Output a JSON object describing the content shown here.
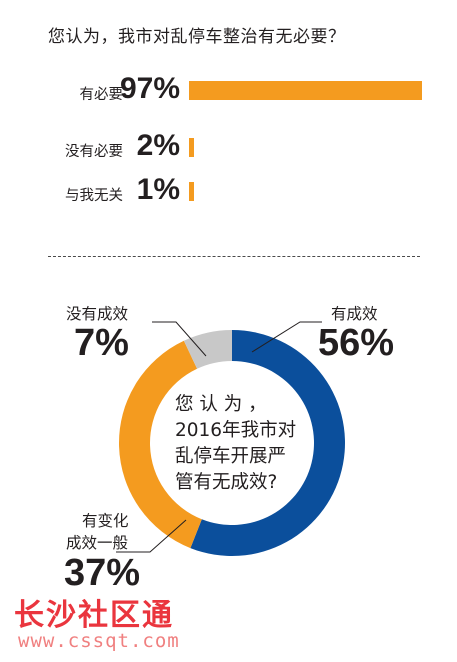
{
  "colors": {
    "accent_orange": "#f49b1f",
    "blue": "#0b4f9c",
    "gray": "#c8c8c8",
    "watermark_red": "#e8202a"
  },
  "chart_data": [
    {
      "type": "bar",
      "title": "您认为，我市对乱停车整治有无必要？",
      "categories": [
        "有必要",
        "没有必要",
        "与我无关"
      ],
      "values": [
        97,
        2,
        1
      ],
      "value_labels": [
        "97%",
        "2%",
        "1%"
      ],
      "unit": "%",
      "orientation": "horizontal",
      "grid": false
    },
    {
      "type": "pie",
      "variant": "donut",
      "title_lines": [
        "您 认 为 ，",
        "2016年我市对",
        "乱停车开展严",
        "管有无成效?"
      ],
      "slices": [
        {
          "label": "有成效",
          "value": 56,
          "value_label": "56%",
          "color": "#0b4f9c"
        },
        {
          "label_lines": [
            "有变化",
            "成效一般"
          ],
          "value": 37,
          "value_label": "37%",
          "color": "#f49b1f"
        },
        {
          "label": "没有成效",
          "value": 7,
          "value_label": "7%",
          "color": "#c8c8c8"
        }
      ]
    }
  ],
  "watermark": {
    "brand": "长沙社区通",
    "url": "www.cssqt.com"
  }
}
